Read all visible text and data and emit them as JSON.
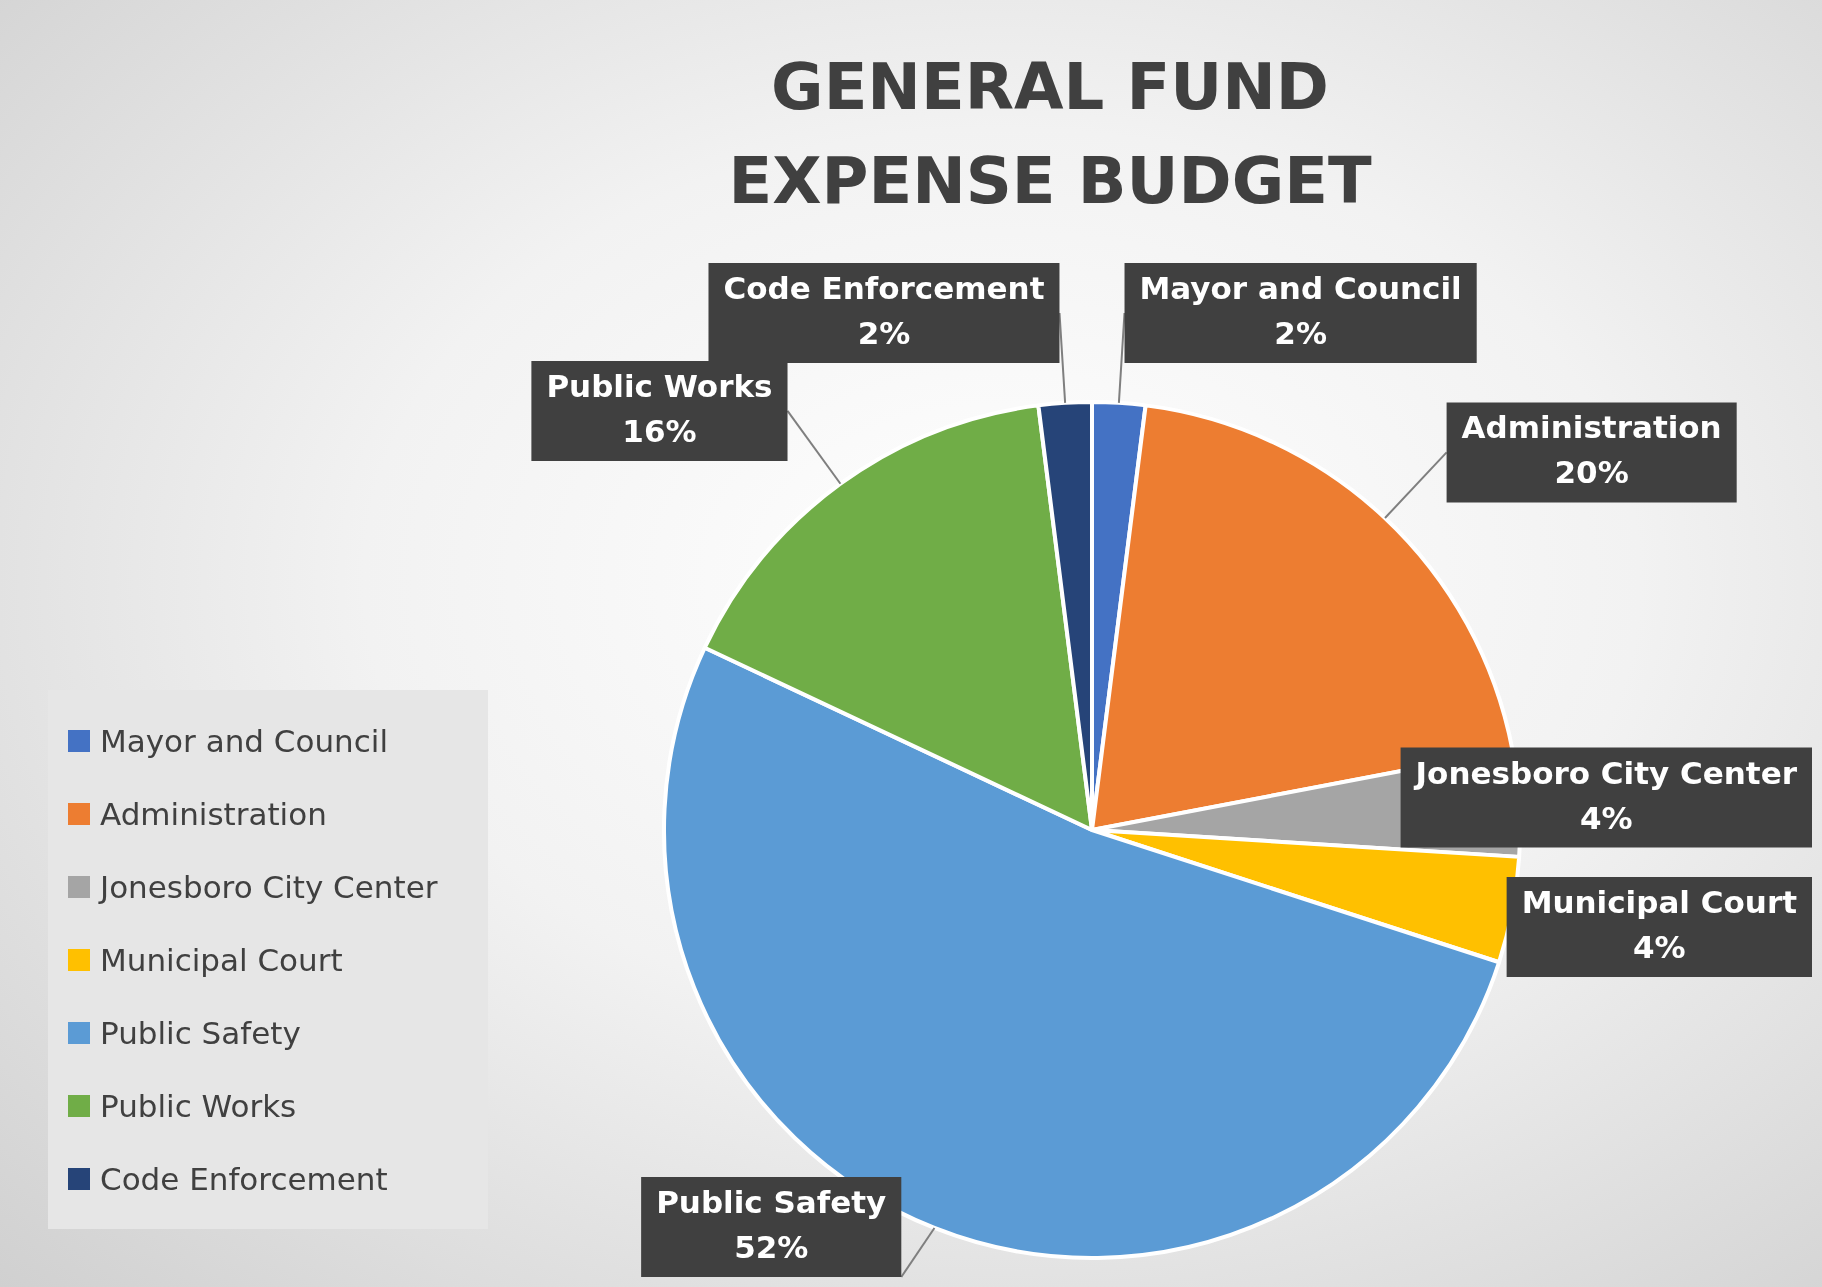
{
  "chart_data": {
    "type": "pie",
    "title": "GENERAL FUND\nEXPENSE BUDGET",
    "categories": [
      "Mayor and Council",
      "Administration",
      "Jonesboro City Center",
      "Municipal Court",
      "Public Safety",
      "Public Works",
      "Code Enforcement"
    ],
    "values": [
      2,
      20,
      4,
      4,
      52,
      16,
      2
    ],
    "colors": [
      "#4472c4",
      "#ed7d31",
      "#a5a5a5",
      "#ffc000",
      "#5b9bd5",
      "#70ad47",
      "#264478"
    ],
    "value_labels": [
      "2%",
      "20%",
      "4%",
      "4%",
      "52%",
      "16%",
      "2%"
    ],
    "legend": "left"
  }
}
